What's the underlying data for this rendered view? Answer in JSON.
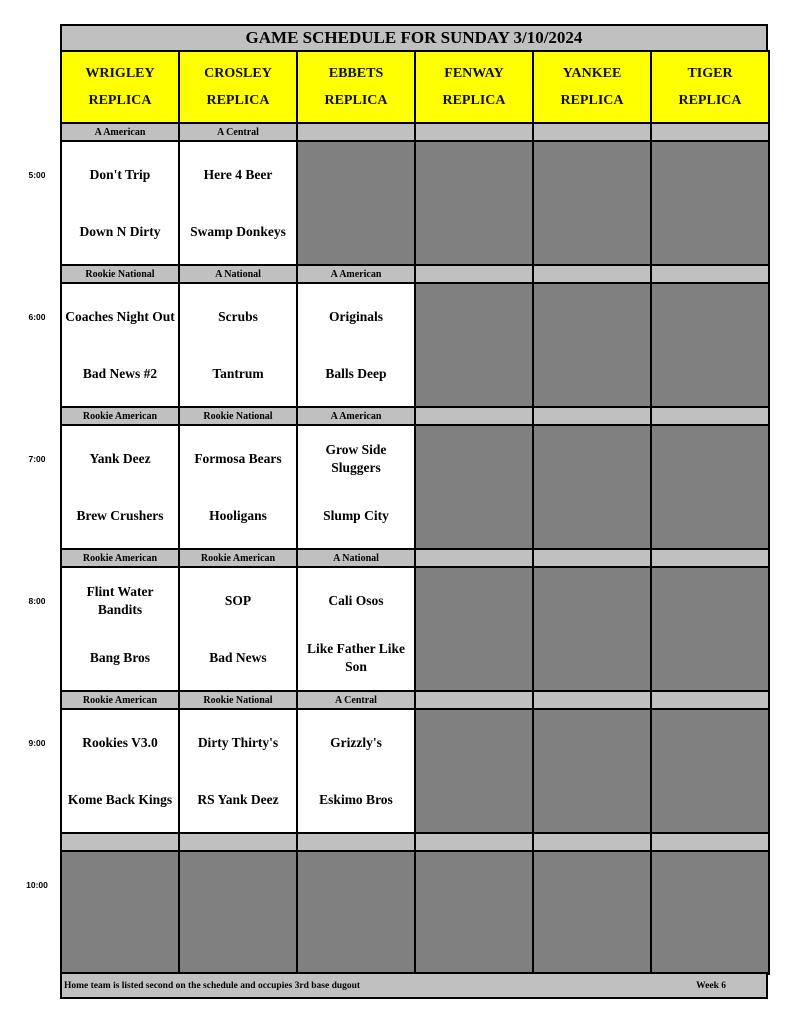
{
  "title": "GAME SCHEDULE FOR SUNDAY 3/10/2024",
  "fields": [
    {
      "line1": "WRIGLEY",
      "line2": "REPLICA"
    },
    {
      "line1": "CROSLEY",
      "line2": "REPLICA"
    },
    {
      "line1": "EBBETS",
      "line2": "REPLICA"
    },
    {
      "line1": "FENWAY",
      "line2": "REPLICA"
    },
    {
      "line1": "YANKEE",
      "line2": "REPLICA"
    },
    {
      "line1": "TIGER",
      "line2": "REPLICA"
    }
  ],
  "slots": [
    {
      "time": "5:00",
      "divisions": [
        "A American",
        "A Central",
        "",
        "",
        "",
        ""
      ],
      "games": [
        {
          "away": "Don't Trip",
          "home": "Down N Dirty"
        },
        {
          "away": "Here 4 Beer",
          "home": "Swamp Donkeys"
        },
        null,
        null,
        null,
        null
      ]
    },
    {
      "time": "6:00",
      "divisions": [
        "Rookie National",
        "A National",
        "A American",
        "",
        "",
        ""
      ],
      "games": [
        {
          "away": "Coaches Night Out",
          "home": "Bad News #2"
        },
        {
          "away": "Scrubs",
          "home": "Tantrum"
        },
        {
          "away": "Originals",
          "home": "Balls Deep"
        },
        null,
        null,
        null
      ]
    },
    {
      "time": "7:00",
      "divisions": [
        "Rookie American",
        "Rookie National",
        "A American",
        "",
        "",
        ""
      ],
      "games": [
        {
          "away": "Yank Deez",
          "home": "Brew Crushers"
        },
        {
          "away": "Formosa Bears",
          "home": "Hooligans"
        },
        {
          "away": "Grow Side Sluggers",
          "home": "Slump City"
        },
        null,
        null,
        null
      ]
    },
    {
      "time": "8:00",
      "divisions": [
        "Rookie American",
        "Rookie American",
        "A National",
        "",
        "",
        ""
      ],
      "games": [
        {
          "away": "Flint Water Bandits",
          "home": "Bang Bros"
        },
        {
          "away": "SOP",
          "home": "Bad News"
        },
        {
          "away": "Cali Osos",
          "home": "Like Father Like Son"
        },
        null,
        null,
        null
      ]
    },
    {
      "time": "9:00",
      "divisions": [
        "Rookie American",
        "Rookie National",
        "A Central",
        "",
        "",
        ""
      ],
      "games": [
        {
          "away": "Rookies V3.0",
          "home": "Kome Back Kings"
        },
        {
          "away": "Dirty Thirty's",
          "home": "RS Yank Deez"
        },
        {
          "away": "Grizzly's",
          "home": "Eskimo Bros"
        },
        null,
        null,
        null
      ]
    },
    {
      "time": "10:00",
      "divisions": [
        "",
        "",
        "",
        "",
        "",
        ""
      ],
      "games": [
        null,
        null,
        null,
        null,
        null,
        null
      ]
    }
  ],
  "footer": {
    "note": "Home team is listed second on the schedule and occupies 3rd base dugout",
    "week": "Week 6"
  },
  "colors": {
    "header": "#ffff00",
    "bar": "#c0c0c0",
    "unused": "#808080"
  }
}
